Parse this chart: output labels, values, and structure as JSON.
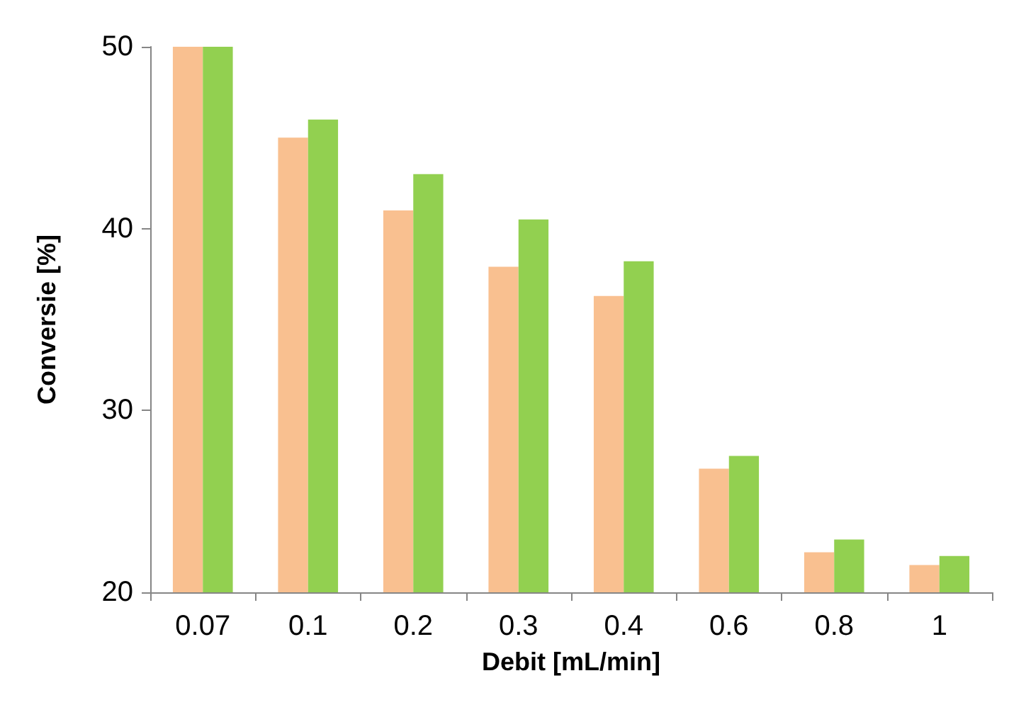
{
  "chart_data": {
    "type": "bar",
    "xlabel": "Debit [mL/min]",
    "ylabel": "Conversie [%]",
    "categories": [
      "0.07",
      "0.1",
      "0.2",
      "0.3",
      "0.4",
      "0.6",
      "0.8",
      "1"
    ],
    "series": [
      {
        "color": "#f9c090",
        "values": [
          50,
          45,
          41,
          37.9,
          36.3,
          26.8,
          22.2,
          21.5
        ]
      },
      {
        "color": "#92d050",
        "values": [
          50,
          46,
          43,
          40.5,
          38.2,
          27.5,
          22.9,
          22
        ]
      }
    ],
    "ylim": [
      20,
      50
    ],
    "yticks": [
      20,
      30,
      40,
      50
    ],
    "grid": false
  }
}
